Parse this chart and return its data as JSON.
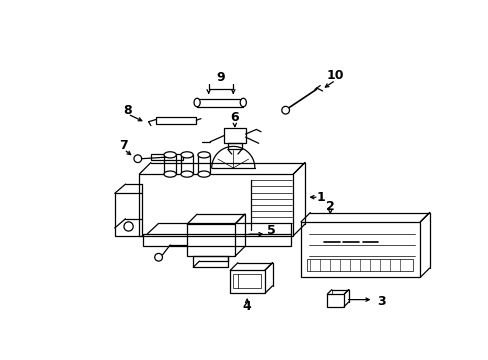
{
  "background_color": "#ffffff",
  "line_color": "#000000",
  "text_color": "#000000",
  "fig_width": 4.89,
  "fig_height": 3.6,
  "dpi": 100
}
